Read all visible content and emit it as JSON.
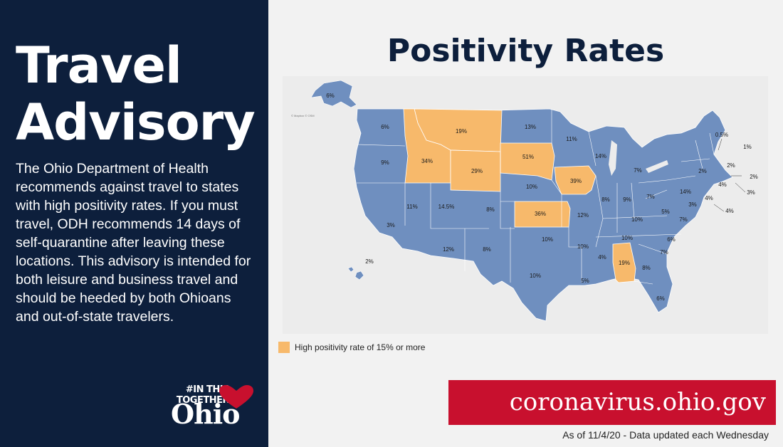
{
  "left": {
    "title": "Travel Advisory",
    "body": "The Ohio Department of Health recommends against travel to states with high positivity rates. If you must travel, ODH recommends 14 days of self-quarantine after leaving these locations. This advisory is intended for both leisure and business travel and should be heeded by both Ohioans and out-of-state travelers.",
    "logo_tag": "#IN THIS TOGETHER",
    "logo_name": "Ohio"
  },
  "right": {
    "title": "Positivity Rates",
    "map_credit": "© Mapbox © OSM",
    "legend_label": "High positivity rate of 15% or more",
    "banner": "coronavirus.ohio.gov",
    "as_of": "As of 11/4/20 - Data updated each Wednesday"
  },
  "colors": {
    "navy": "#0d1f3c",
    "high": "#f7b96b",
    "normal": "#6f8fbf",
    "banner": "#c8102e"
  },
  "map_data": {
    "threshold": "15% or more",
    "states": [
      {
        "state": "WA",
        "rate": "6%",
        "high": false
      },
      {
        "state": "OR",
        "rate": "9%",
        "high": false
      },
      {
        "state": "CA",
        "rate": "3%",
        "high": false
      },
      {
        "state": "NV",
        "rate": "11%",
        "high": false
      },
      {
        "state": "ID",
        "rate": "34%",
        "high": true
      },
      {
        "state": "MT",
        "rate": "19%",
        "high": true
      },
      {
        "state": "WY",
        "rate": "29%",
        "high": true
      },
      {
        "state": "UT",
        "rate": "14.5%",
        "high": false
      },
      {
        "state": "AZ",
        "rate": "12%",
        "high": false
      },
      {
        "state": "CO",
        "rate": "8%",
        "high": false
      },
      {
        "state": "NM",
        "rate": "8%",
        "high": false
      },
      {
        "state": "ND",
        "rate": "13%",
        "high": false
      },
      {
        "state": "SD",
        "rate": "51%",
        "high": true
      },
      {
        "state": "NE",
        "rate": "10%",
        "high": false
      },
      {
        "state": "KS",
        "rate": "36%",
        "high": true
      },
      {
        "state": "OK",
        "rate": "10%",
        "high": false
      },
      {
        "state": "TX",
        "rate": "10%",
        "high": false
      },
      {
        "state": "MN",
        "rate": "11%",
        "high": false
      },
      {
        "state": "IA",
        "rate": "39%",
        "high": true
      },
      {
        "state": "MO",
        "rate": "12%",
        "high": false
      },
      {
        "state": "AR",
        "rate": "10%",
        "high": false
      },
      {
        "state": "LA",
        "rate": "5%",
        "high": false
      },
      {
        "state": "WI",
        "rate": "14%",
        "high": false
      },
      {
        "state": "IL",
        "rate": "8%",
        "high": false
      },
      {
        "state": "MI",
        "rate": "7%",
        "high": false
      },
      {
        "state": "IN",
        "rate": "9%",
        "high": false
      },
      {
        "state": "OH",
        "rate": "7%",
        "high": false
      },
      {
        "state": "KY",
        "rate": "10%",
        "high": false
      },
      {
        "state": "TN",
        "rate": "10%",
        "high": false
      },
      {
        "state": "MS",
        "rate": "4%",
        "high": false
      },
      {
        "state": "AL",
        "rate": "19%",
        "high": true
      },
      {
        "state": "GA",
        "rate": "8%",
        "high": false
      },
      {
        "state": "FL",
        "rate": "6%",
        "high": false
      },
      {
        "state": "SC",
        "rate": "7%",
        "high": false
      },
      {
        "state": "NC",
        "rate": "6%",
        "high": false
      },
      {
        "state": "VA",
        "rate": "7%",
        "high": false
      },
      {
        "state": "WV",
        "rate": "5%",
        "high": false
      },
      {
        "state": "PA",
        "rate": "14%",
        "high": false
      },
      {
        "state": "NY",
        "rate": "2%",
        "high": false
      },
      {
        "state": "VT",
        "rate": "0.5%",
        "high": false
      },
      {
        "state": "NH",
        "rate": "2%",
        "high": false
      },
      {
        "state": "ME",
        "rate": "1%",
        "high": false
      },
      {
        "state": "MA",
        "rate": "2%",
        "high": false
      },
      {
        "state": "CT",
        "rate": "4%",
        "high": false
      },
      {
        "state": "RI",
        "rate": "3%",
        "high": false
      },
      {
        "state": "NJ",
        "rate": "4%",
        "high": false
      },
      {
        "state": "MD",
        "rate": "3%",
        "high": false
      },
      {
        "state": "DE",
        "rate": "4%",
        "high": false
      },
      {
        "state": "AK",
        "rate": "6%",
        "high": false
      },
      {
        "state": "HI",
        "rate": "2%",
        "high": false
      }
    ]
  }
}
